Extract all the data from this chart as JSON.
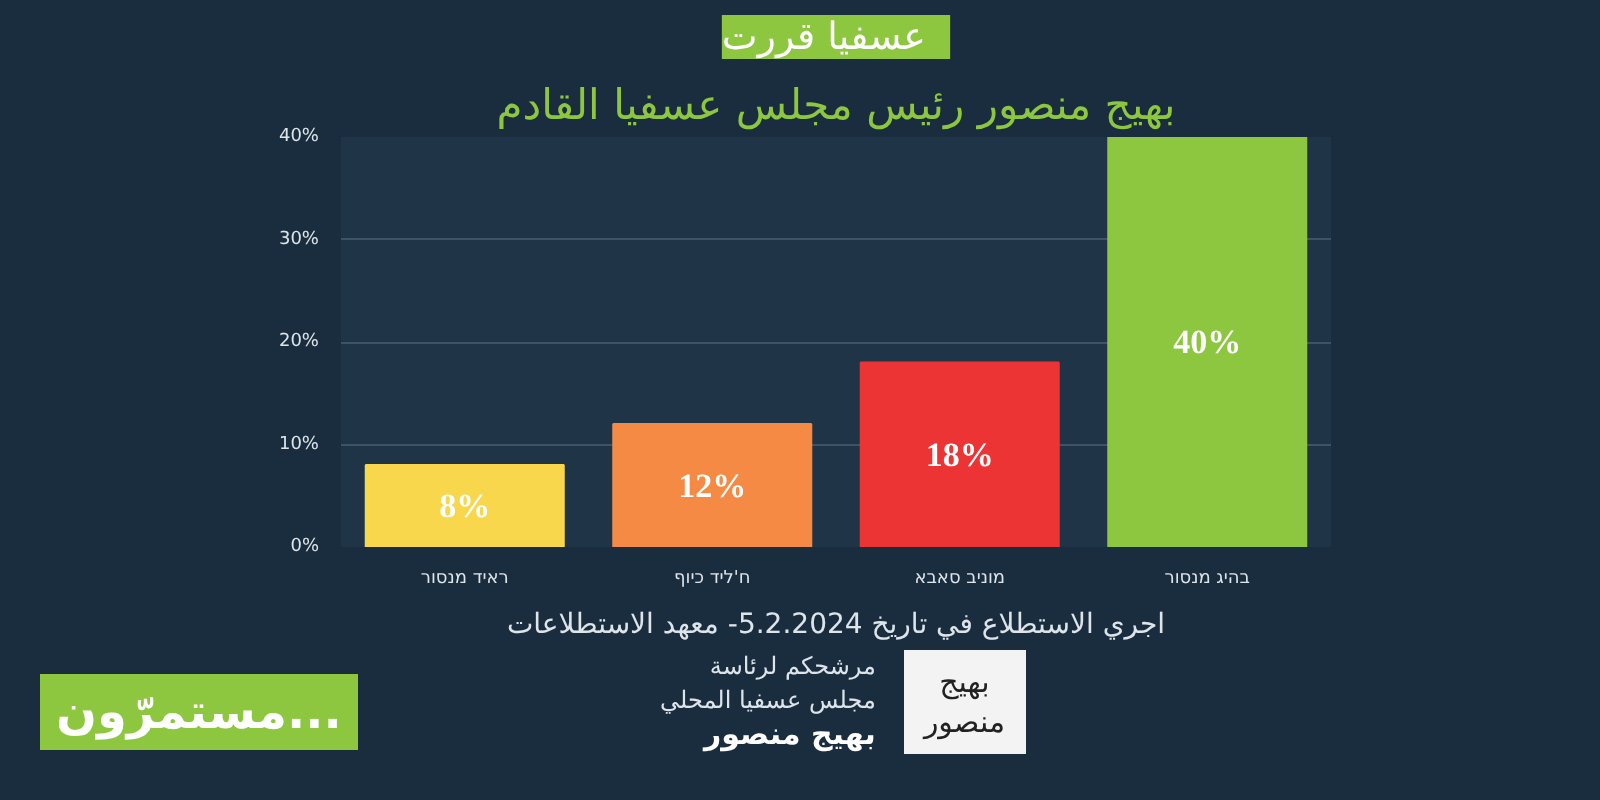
{
  "chart_data": {
    "type": "bar",
    "title": "عسفيا قررت",
    "subtitle": "بهيج منصور رئيس مجلس عسفيا القادم",
    "categories": [
      "ראיד מנסור",
      "ח'ליד כיוף",
      "מוניב סאבא",
      "בהיג מנסור"
    ],
    "values": [
      8,
      12,
      18,
      40
    ],
    "colors": [
      "#f9d74c",
      "#f58a45",
      "#ec3434",
      "#8dc63f"
    ],
    "value_labels": [
      "8%",
      "12%",
      "18%",
      "40%"
    ],
    "ylim": [
      0,
      40
    ],
    "yticks": [
      {
        "value": 0,
        "label": "0%"
      },
      {
        "value": 10,
        "label": "10%"
      },
      {
        "value": 20,
        "label": "20%"
      },
      {
        "value": 30,
        "label": "30%"
      },
      {
        "value": 40,
        "label": "40%"
      }
    ],
    "grid": "y",
    "annotations": [
      "اجري الاستطلاع في تاريخ 5.2.2024- معهد الاستطلاعات",
      "مستمرّون...",
      "مرشحكم لرئاسة",
      "مجلس عسفيا المحلي",
      "بهيج منصور",
      "بهيج",
      "منصور"
    ]
  }
}
